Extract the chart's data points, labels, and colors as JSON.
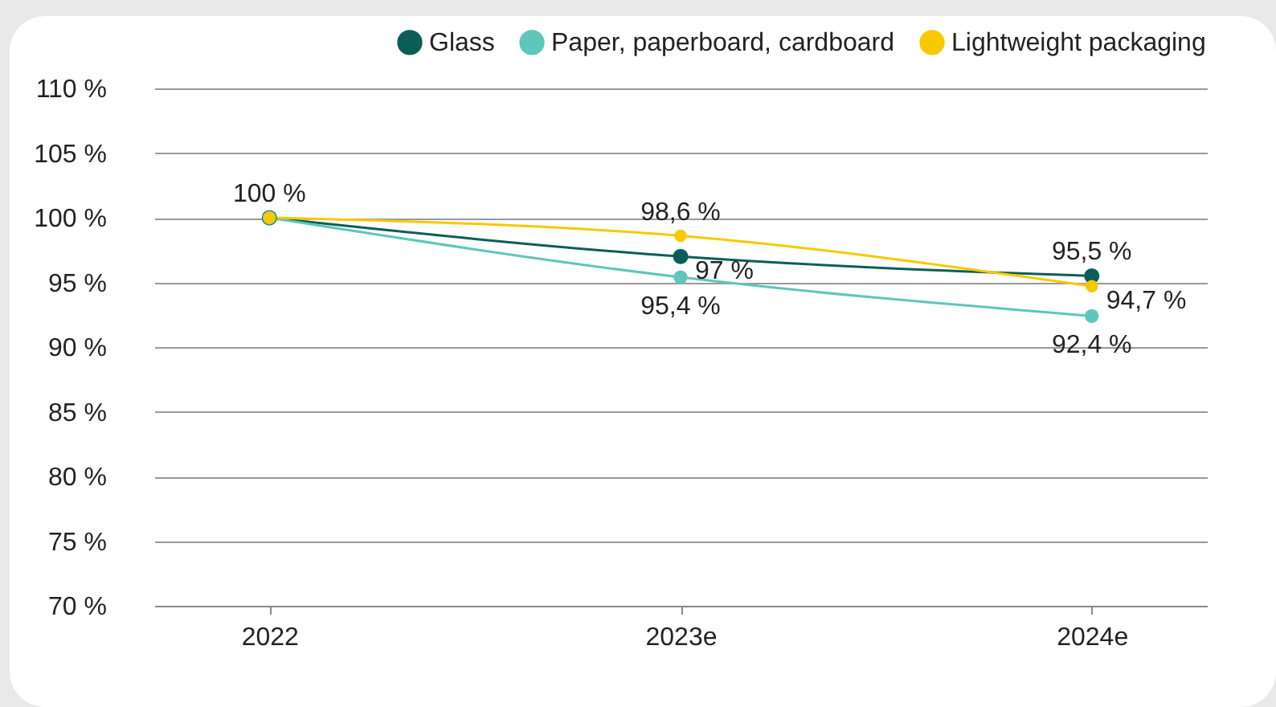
{
  "chart_data": {
    "type": "line",
    "categories": [
      "2022",
      "2023e",
      "2024e"
    ],
    "series": [
      {
        "name": "Glass",
        "color": "#0b5e57",
        "values": [
          100,
          97,
          95.5
        ],
        "value_labels": [
          "100 %",
          "97 %",
          "95,5 %"
        ]
      },
      {
        "name": "Paper, paperboard, cardboard",
        "color": "#5ec6ba",
        "values": [
          100,
          95.4,
          92.4
        ],
        "value_labels": [
          null,
          "95,4 %",
          "92,4 %"
        ]
      },
      {
        "name": "Lightweight packaging",
        "color": "#f7c900",
        "values": [
          100,
          98.6,
          94.7
        ],
        "value_labels": [
          null,
          "98,6 %",
          "94,7 %"
        ]
      }
    ],
    "ylim": [
      70,
      110
    ],
    "yticks": [
      {
        "value": 70,
        "label": "70 %"
      },
      {
        "value": 75,
        "label": "75 %"
      },
      {
        "value": 80,
        "label": "80 %"
      },
      {
        "value": 85,
        "label": "85 %"
      },
      {
        "value": 90,
        "label": "90 %"
      },
      {
        "value": 95,
        "label": "95 %"
      },
      {
        "value": 100,
        "label": "100 %"
      },
      {
        "value": 105,
        "label": "105 %"
      },
      {
        "value": 110,
        "label": "110 %"
      }
    ],
    "grid": "y",
    "legend": "top right",
    "marker": "circle",
    "line_style": "solid"
  }
}
